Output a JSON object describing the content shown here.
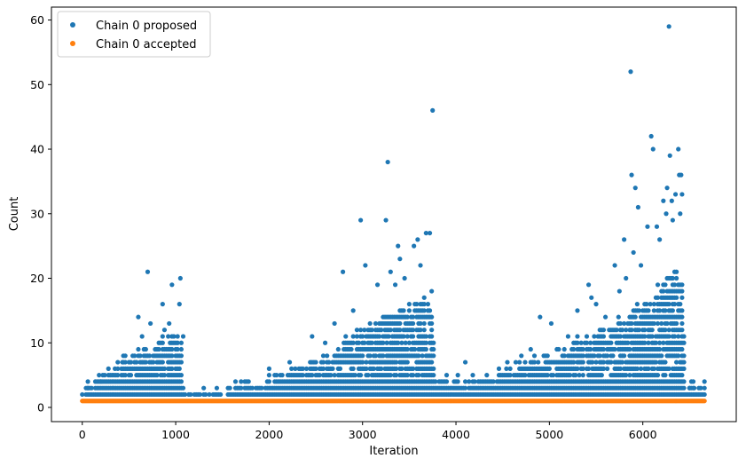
{
  "chart_data": {
    "type": "scatter",
    "xlabel": "Iteration",
    "ylabel": "Count",
    "xlim": [
      -330,
      7000
    ],
    "ylim": [
      -2.2,
      62
    ],
    "x_ticks": [
      0,
      1000,
      2000,
      3000,
      4000,
      5000,
      6000
    ],
    "y_ticks": [
      0,
      10,
      20,
      30,
      40,
      50,
      60
    ],
    "grid": false,
    "legend_position": "top-left",
    "series": [
      {
        "name": "Chain 0 proposed",
        "color": "#1f77b4",
        "outliers": [
          {
            "x": 60,
            "y": 3
          },
          {
            "x": 200,
            "y": 4
          },
          {
            "x": 300,
            "y": 5
          },
          {
            "x": 350,
            "y": 6
          },
          {
            "x": 430,
            "y": 7
          },
          {
            "x": 540,
            "y": 8
          },
          {
            "x": 600,
            "y": 14
          },
          {
            "x": 640,
            "y": 11
          },
          {
            "x": 700,
            "y": 21
          },
          {
            "x": 730,
            "y": 13
          },
          {
            "x": 860,
            "y": 16
          },
          {
            "x": 880,
            "y": 12
          },
          {
            "x": 930,
            "y": 13
          },
          {
            "x": 960,
            "y": 19
          },
          {
            "x": 1040,
            "y": 16
          },
          {
            "x": 1050,
            "y": 20
          },
          {
            "x": 1080,
            "y": 11
          },
          {
            "x": 2000,
            "y": 6
          },
          {
            "x": 2220,
            "y": 7
          },
          {
            "x": 2460,
            "y": 11
          },
          {
            "x": 2600,
            "y": 10
          },
          {
            "x": 2700,
            "y": 13
          },
          {
            "x": 2790,
            "y": 21
          },
          {
            "x": 2900,
            "y": 15
          },
          {
            "x": 2980,
            "y": 29
          },
          {
            "x": 3030,
            "y": 22
          },
          {
            "x": 3160,
            "y": 19
          },
          {
            "x": 3250,
            "y": 29
          },
          {
            "x": 3270,
            "y": 38
          },
          {
            "x": 3300,
            "y": 21
          },
          {
            "x": 3350,
            "y": 19
          },
          {
            "x": 3380,
            "y": 25
          },
          {
            "x": 3400,
            "y": 23
          },
          {
            "x": 3450,
            "y": 20
          },
          {
            "x": 3550,
            "y": 25
          },
          {
            "x": 3590,
            "y": 26
          },
          {
            "x": 3620,
            "y": 22
          },
          {
            "x": 3680,
            "y": 27
          },
          {
            "x": 3720,
            "y": 27
          },
          {
            "x": 3750,
            "y": 46
          },
          {
            "x": 3740,
            "y": 18
          },
          {
            "x": 4100,
            "y": 7
          },
          {
            "x": 4330,
            "y": 5
          },
          {
            "x": 4550,
            "y": 7
          },
          {
            "x": 4700,
            "y": 8
          },
          {
            "x": 4800,
            "y": 9
          },
          {
            "x": 4900,
            "y": 14
          },
          {
            "x": 5020,
            "y": 13
          },
          {
            "x": 5200,
            "y": 11
          },
          {
            "x": 5300,
            "y": 15
          },
          {
            "x": 5420,
            "y": 19
          },
          {
            "x": 5450,
            "y": 17
          },
          {
            "x": 5500,
            "y": 16
          },
          {
            "x": 5600,
            "y": 14
          },
          {
            "x": 5700,
            "y": 22
          },
          {
            "x": 5750,
            "y": 18
          },
          {
            "x": 5800,
            "y": 26
          },
          {
            "x": 5820,
            "y": 20
          },
          {
            "x": 5870,
            "y": 52
          },
          {
            "x": 5880,
            "y": 36
          },
          {
            "x": 5900,
            "y": 24
          },
          {
            "x": 5920,
            "y": 34
          },
          {
            "x": 5950,
            "y": 31
          },
          {
            "x": 5980,
            "y": 22
          },
          {
            "x": 6050,
            "y": 28
          },
          {
            "x": 6090,
            "y": 42
          },
          {
            "x": 6110,
            "y": 40
          },
          {
            "x": 6150,
            "y": 28
          },
          {
            "x": 6180,
            "y": 26
          },
          {
            "x": 6220,
            "y": 32
          },
          {
            "x": 6250,
            "y": 30
          },
          {
            "x": 6260,
            "y": 34
          },
          {
            "x": 6280,
            "y": 59
          },
          {
            "x": 6290,
            "y": 39
          },
          {
            "x": 6310,
            "y": 32
          },
          {
            "x": 6320,
            "y": 29
          },
          {
            "x": 6350,
            "y": 33
          },
          {
            "x": 6380,
            "y": 40
          },
          {
            "x": 6390,
            "y": 36
          },
          {
            "x": 6410,
            "y": 36
          },
          {
            "x": 6420,
            "y": 33
          },
          {
            "x": 6400,
            "y": 30
          },
          {
            "x": 6500,
            "y": 3
          },
          {
            "x": 6550,
            "y": 3
          },
          {
            "x": 6620,
            "y": 3
          }
        ],
        "envelope": [
          {
            "x": 0,
            "y": 1
          },
          {
            "x": 50,
            "y": 2
          },
          {
            "x": 150,
            "y": 3
          },
          {
            "x": 250,
            "y": 4
          },
          {
            "x": 350,
            "y": 5
          },
          {
            "x": 450,
            "y": 6
          },
          {
            "x": 550,
            "y": 7
          },
          {
            "x": 650,
            "y": 8
          },
          {
            "x": 750,
            "y": 8
          },
          {
            "x": 850,
            "y": 9
          },
          {
            "x": 950,
            "y": 10
          },
          {
            "x": 1060,
            "y": 10
          },
          {
            "x": 1080,
            "y": 1
          },
          {
            "x": 1550,
            "y": 1
          },
          {
            "x": 1600,
            "y": 2
          },
          {
            "x": 1800,
            "y": 3
          },
          {
            "x": 2000,
            "y": 3
          },
          {
            "x": 2100,
            "y": 4
          },
          {
            "x": 2300,
            "y": 5
          },
          {
            "x": 2500,
            "y": 6
          },
          {
            "x": 2700,
            "y": 8
          },
          {
            "x": 2900,
            "y": 10
          },
          {
            "x": 3100,
            "y": 12
          },
          {
            "x": 3300,
            "y": 14
          },
          {
            "x": 3500,
            "y": 15
          },
          {
            "x": 3650,
            "y": 16
          },
          {
            "x": 3750,
            "y": 14
          },
          {
            "x": 3780,
            "y": 3
          },
          {
            "x": 4000,
            "y": 3
          },
          {
            "x": 4200,
            "y": 3
          },
          {
            "x": 4400,
            "y": 4
          },
          {
            "x": 4600,
            "y": 5
          },
          {
            "x": 4800,
            "y": 6
          },
          {
            "x": 5000,
            "y": 7
          },
          {
            "x": 5200,
            "y": 8
          },
          {
            "x": 5400,
            "y": 10
          },
          {
            "x": 5600,
            "y": 11
          },
          {
            "x": 5800,
            "y": 13
          },
          {
            "x": 6000,
            "y": 15
          },
          {
            "x": 6200,
            "y": 18
          },
          {
            "x": 6400,
            "y": 20
          },
          {
            "x": 6430,
            "y": 20
          },
          {
            "x": 6450,
            "y": 2
          },
          {
            "x": 6660,
            "y": 2
          }
        ]
      },
      {
        "name": "Chain 0 accepted",
        "color": "#ff7f0e",
        "constant_value": 1,
        "x_range": [
          0,
          6660
        ]
      }
    ]
  }
}
